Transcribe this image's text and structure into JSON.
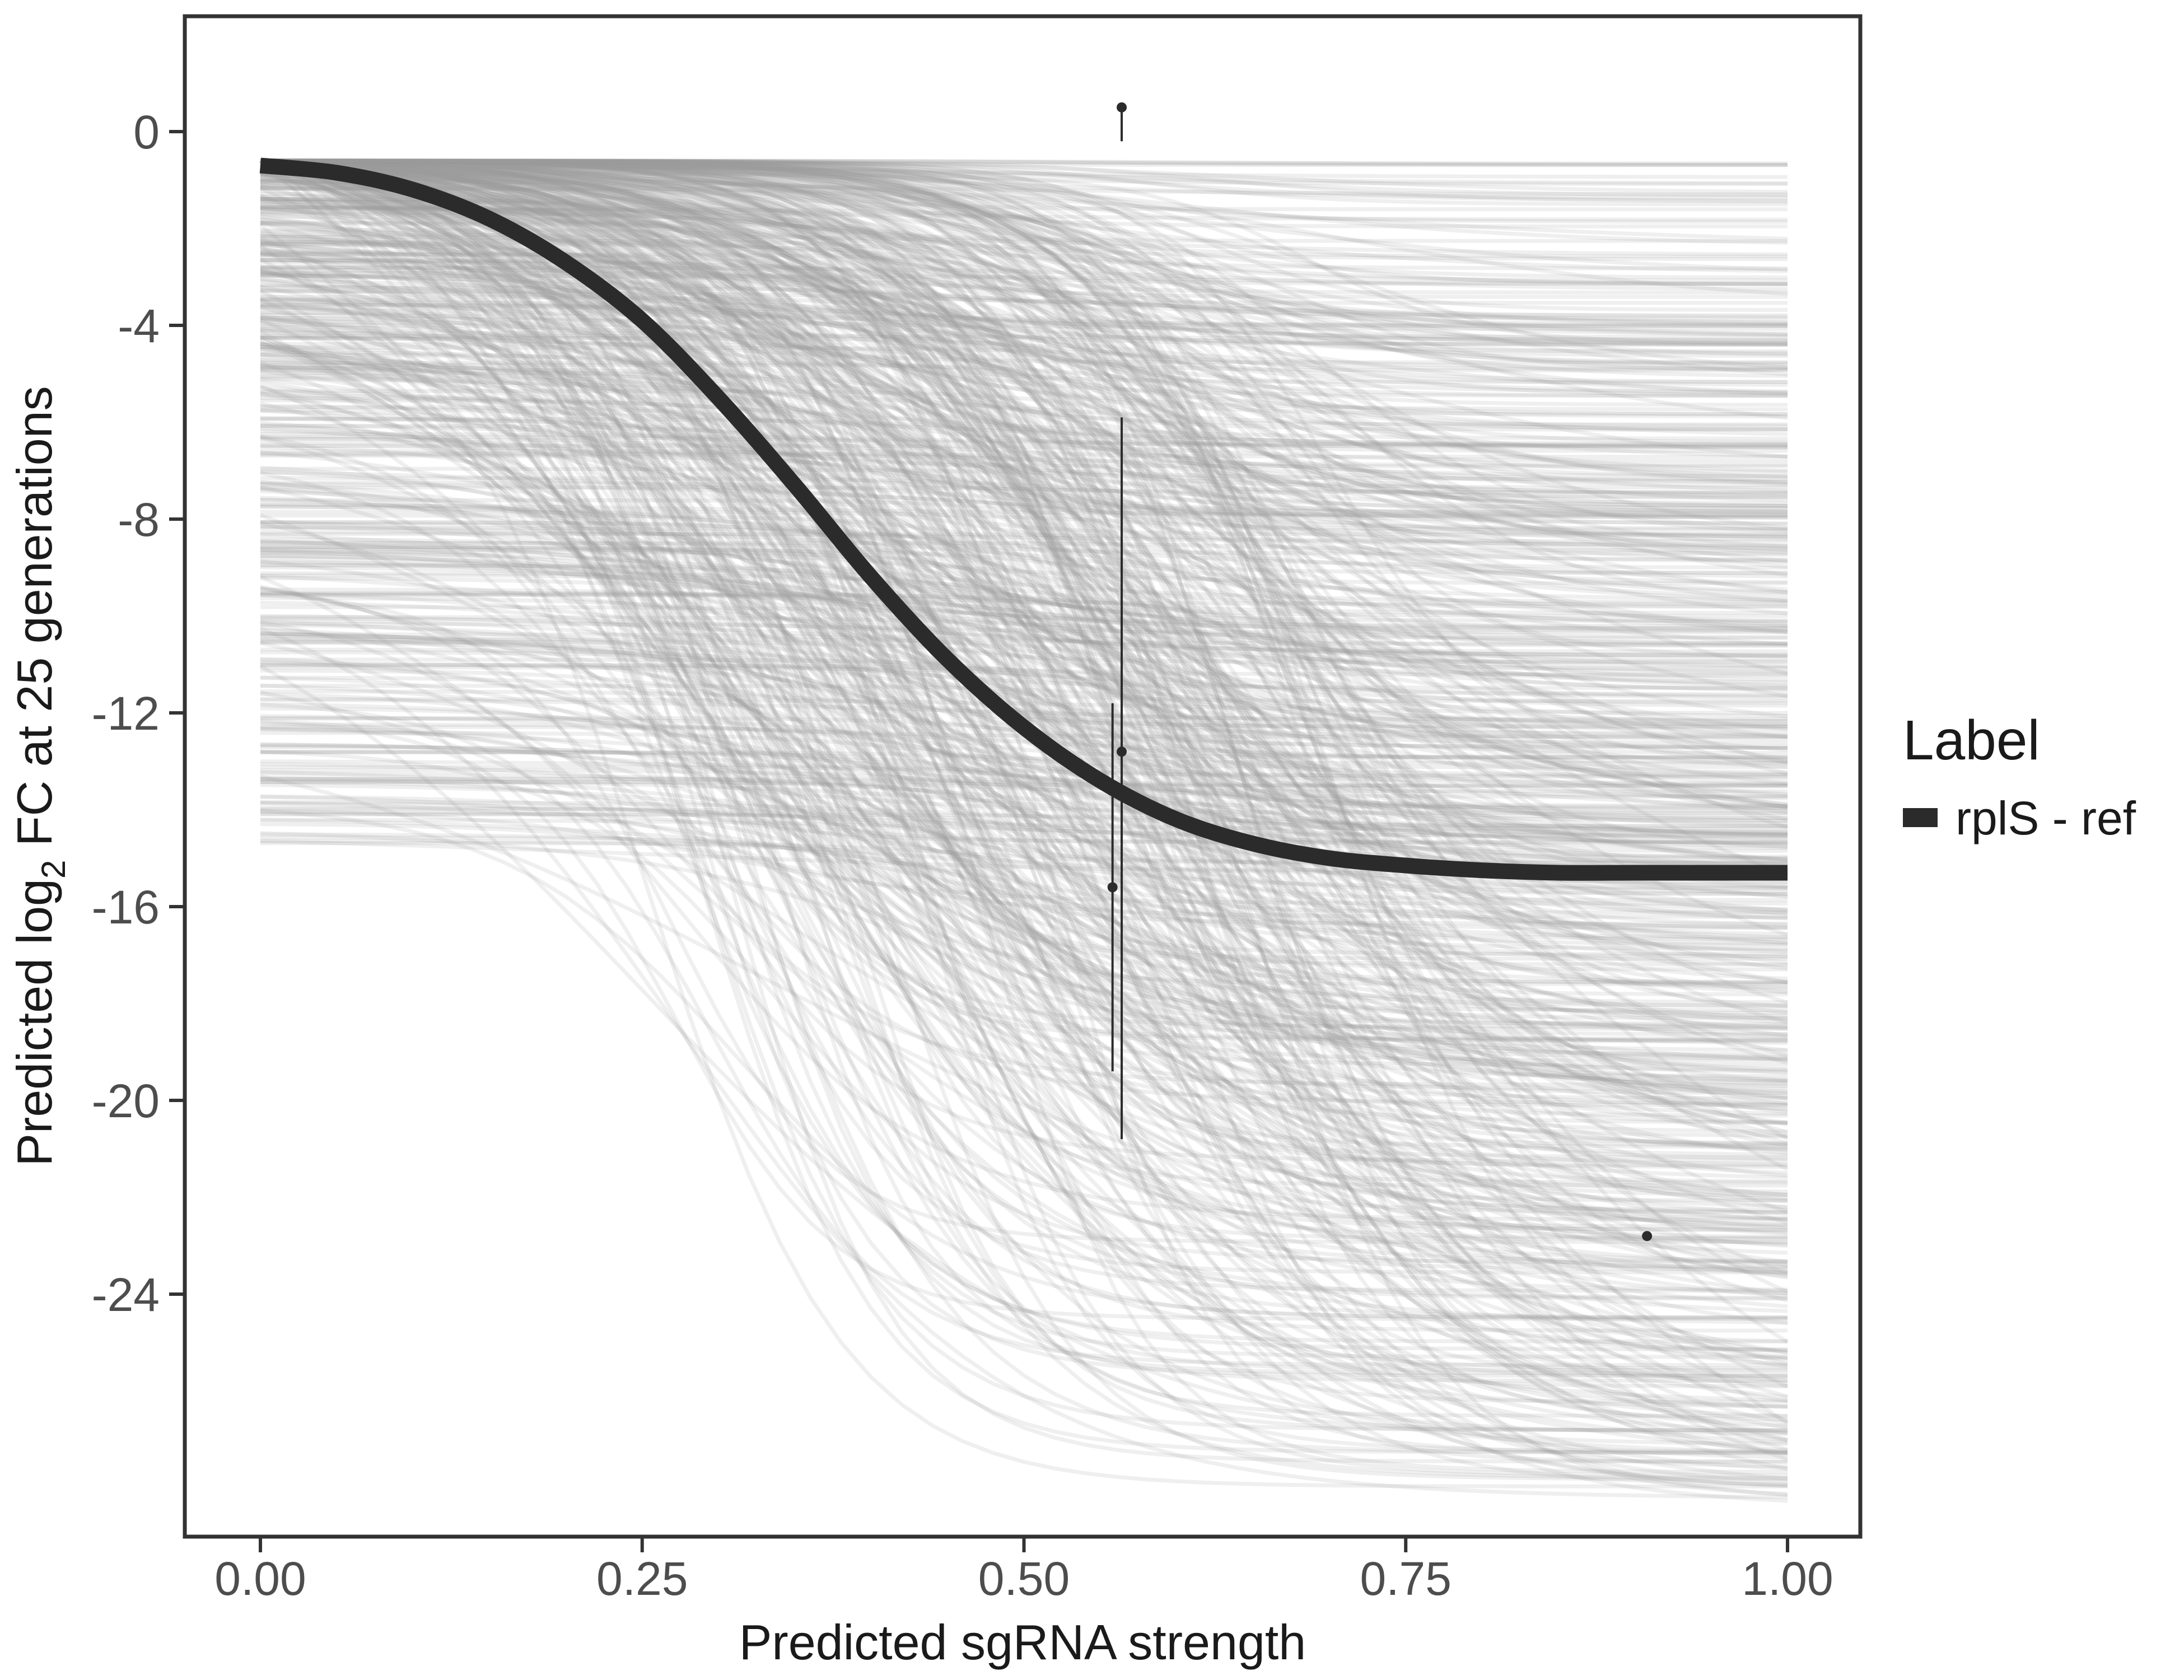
{
  "chart_data": {
    "type": "line",
    "title": "",
    "xlabel": "Predicted sgRNA strength",
    "ylabel_parts": {
      "before": "Predicted  log",
      "subscript": "2",
      "after": " FC at 25 generations"
    },
    "xlim": [
      0,
      1
    ],
    "ylim": [
      -29.5,
      2.5
    ],
    "x_ticks": [
      0,
      0.25,
      0.5,
      0.75,
      1
    ],
    "x_tick_labels": [
      "0.00",
      "0.25",
      "0.50",
      "0.75",
      "1.00"
    ],
    "y_ticks": [
      0,
      -4,
      -8,
      -12,
      -16,
      -20,
      -24
    ],
    "y_tick_labels": [
      "0",
      "-4",
      "-8",
      "-12",
      "-16",
      "-20",
      "-24"
    ],
    "grid": false,
    "legend": {
      "title": "Label",
      "placement": "right",
      "entries": [
        {
          "name": "rplS - ref",
          "color": "#2b2b2b"
        }
      ]
    },
    "main_curve": {
      "name": "rplS - ref",
      "color": "#2b2b2b",
      "x": [
        0,
        0.05,
        0.1,
        0.15,
        0.2,
        0.25,
        0.3,
        0.35,
        0.4,
        0.45,
        0.5,
        0.55,
        0.6,
        0.65,
        0.7,
        0.75,
        0.8,
        0.85,
        0.9,
        0.95,
        1.0
      ],
      "y": [
        -0.7,
        -0.85,
        -1.2,
        -1.8,
        -2.7,
        -3.9,
        -5.5,
        -7.3,
        -9.2,
        -10.9,
        -12.3,
        -13.4,
        -14.2,
        -14.7,
        -15.0,
        -15.15,
        -15.25,
        -15.3,
        -15.3,
        -15.3,
        -15.3
      ]
    },
    "posterior_draws": {
      "count": 700,
      "color": "#9e9e9e",
      "start_y_range": [
        -14.7,
        -0.6
      ],
      "end_y_range": [
        -28.4,
        -0.6
      ]
    },
    "observations": [
      {
        "x": 0.564,
        "y": 0.5,
        "lower": -0.2,
        "upper": 0.5
      },
      {
        "x": 0.564,
        "y": -12.8,
        "lower": -20.8,
        "upper": -5.9
      },
      {
        "x": 0.558,
        "y": -15.6,
        "lower": -19.4,
        "upper": -11.8
      },
      {
        "x": 0.908,
        "y": -22.8,
        "lower": -22.8,
        "upper": -22.8
      }
    ]
  }
}
